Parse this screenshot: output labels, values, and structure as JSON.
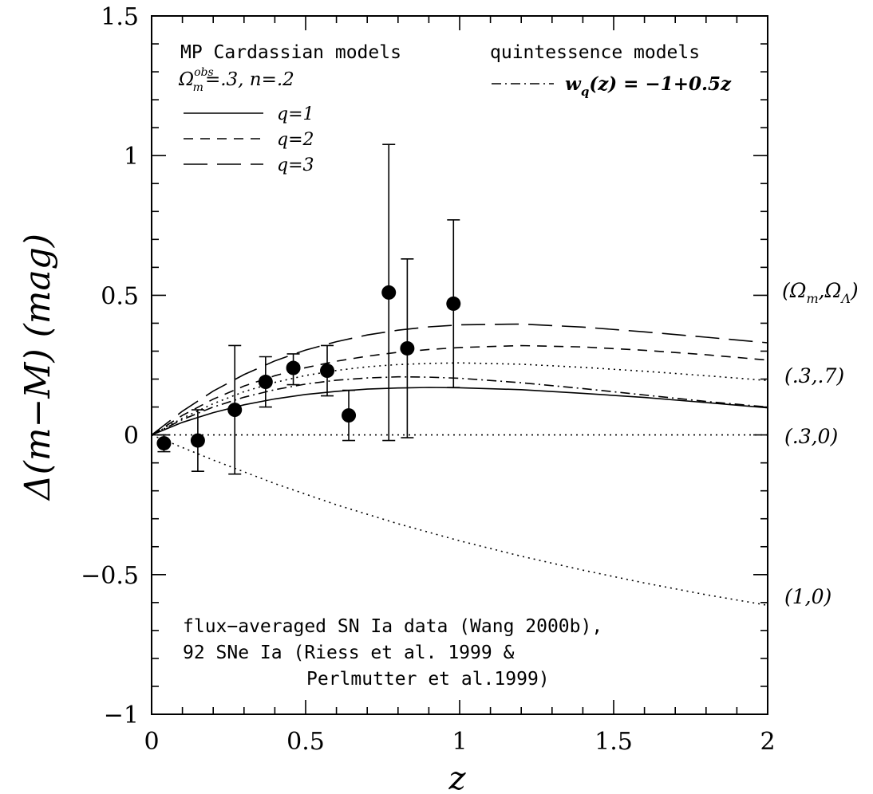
{
  "chart_data": {
    "type": "scatter",
    "xlabel": "z",
    "ylabel": "Δ(m−M)  (mag)",
    "xlim": [
      0,
      2
    ],
    "ylim": [
      -1,
      1.5
    ],
    "x_ticks": [
      "0",
      "0.5",
      "1",
      "1.5",
      "2"
    ],
    "y_ticks": [
      "−1",
      "−0.5",
      "0",
      "0.5",
      "1",
      "1.5"
    ],
    "grid": false,
    "legend_left": {
      "title": "MP Cardassian models",
      "params": "Ω",
      "params_sup": "obs",
      "params_sub": "m",
      "params_rest": "=.3, n=.2",
      "entries": [
        {
          "label": "q=1",
          "style": "solid"
        },
        {
          "label": "q=2",
          "style": "short-dash"
        },
        {
          "label": "q=3",
          "style": "long-dash"
        }
      ]
    },
    "legend_right": {
      "title": "quintessence models",
      "entry_w": "w",
      "entry_sub": "q",
      "entry_rest": "(z) = −1+0.5z",
      "style": "dash-dot"
    },
    "data_note": [
      "flux−averaged SN Ia data (Wang 2000b),",
      "92 SNe Ia (Riess et al. 1999 &",
      "Perlmutter et al.1999)"
    ],
    "right_labels": [
      {
        "text": "(Ω",
        "sub": "m",
        "mid": ",Ω",
        "sub2": "Λ",
        "end": ")",
        "y": 0.5
      },
      {
        "text": "(.3,.7)",
        "y": 0.2
      },
      {
        "text": "(.3,0)",
        "y": 0.0
      },
      {
        "text": "(1,0)",
        "y": -0.58
      }
    ],
    "data_points": [
      {
        "x": 0.04,
        "y": -0.03,
        "ylo": -0.06,
        "yhi": 0.0
      },
      {
        "x": 0.15,
        "y": -0.02,
        "ylo": -0.13,
        "yhi": 0.09
      },
      {
        "x": 0.27,
        "y": 0.09,
        "ylo": -0.14,
        "yhi": 0.32
      },
      {
        "x": 0.37,
        "y": 0.19,
        "ylo": 0.1,
        "yhi": 0.28
      },
      {
        "x": 0.46,
        "y": 0.24,
        "ylo": 0.18,
        "yhi": 0.29
      },
      {
        "x": 0.57,
        "y": 0.23,
        "ylo": 0.14,
        "yhi": 0.32
      },
      {
        "x": 0.64,
        "y": 0.07,
        "ylo": -0.02,
        "yhi": 0.16
      },
      {
        "x": 0.77,
        "y": 0.51,
        "ylo": -0.02,
        "yhi": 1.04
      },
      {
        "x": 0.83,
        "y": 0.31,
        "ylo": -0.01,
        "yhi": 0.63
      },
      {
        "x": 0.98,
        "y": 0.47,
        "ylo": 0.17,
        "yhi": 0.77
      }
    ],
    "series": [
      {
        "model": "cardassian q=1",
        "style": "solid",
        "x": [
          0,
          0.1,
          0.2,
          0.3,
          0.4,
          0.5,
          0.6,
          0.7,
          0.8,
          0.9,
          1.0,
          1.2,
          1.4,
          1.6,
          1.8,
          2.0
        ],
        "y": [
          0,
          0.045,
          0.08,
          0.108,
          0.129,
          0.145,
          0.156,
          0.164,
          0.168,
          0.17,
          0.169,
          0.162,
          0.149,
          0.134,
          0.116,
          0.097
        ]
      },
      {
        "model": "cardassian q=2",
        "style": "short-dash",
        "x": [
          0,
          0.1,
          0.2,
          0.3,
          0.4,
          0.5,
          0.6,
          0.7,
          0.8,
          0.9,
          1.0,
          1.2,
          1.4,
          1.6,
          1.8,
          2.0
        ],
        "y": [
          0,
          0.07,
          0.128,
          0.175,
          0.212,
          0.241,
          0.264,
          0.282,
          0.296,
          0.306,
          0.313,
          0.32,
          0.315,
          0.303,
          0.287,
          0.268
        ]
      },
      {
        "model": "cardassian q=3",
        "style": "long-dash",
        "x": [
          0,
          0.1,
          0.2,
          0.3,
          0.4,
          0.5,
          0.6,
          0.7,
          0.8,
          0.9,
          1.0,
          1.2,
          1.4,
          1.6,
          1.8,
          2.0
        ],
        "y": [
          0,
          0.085,
          0.157,
          0.216,
          0.265,
          0.304,
          0.334,
          0.358,
          0.375,
          0.387,
          0.394,
          0.397,
          0.386,
          0.369,
          0.35,
          0.33
        ]
      },
      {
        "model": "quintessence",
        "style": "dash-dot",
        "x": [
          0,
          0.1,
          0.2,
          0.3,
          0.4,
          0.5,
          0.6,
          0.7,
          0.8,
          0.9,
          1.0,
          1.2,
          1.4,
          1.6,
          1.8,
          2.0
        ],
        "y": [
          0,
          0.055,
          0.1,
          0.135,
          0.162,
          0.182,
          0.196,
          0.204,
          0.208,
          0.207,
          0.203,
          0.187,
          0.166,
          0.143,
          0.12,
          0.1
        ]
      },
      {
        "model": "lambda (.3,.7)",
        "style": "dotted",
        "x": [
          0,
          0.1,
          0.2,
          0.3,
          0.4,
          0.5,
          0.6,
          0.7,
          0.8,
          0.9,
          1.0,
          1.2,
          1.4,
          1.6,
          1.8,
          2.0
        ],
        "y": [
          0,
          0.06,
          0.112,
          0.155,
          0.188,
          0.213,
          0.231,
          0.244,
          0.252,
          0.256,
          0.258,
          0.253,
          0.242,
          0.228,
          0.212,
          0.195
        ]
      },
      {
        "model": "(.3,0)",
        "style": "dotted",
        "x": [
          0,
          2.0
        ],
        "y": [
          0,
          0
        ]
      },
      {
        "model": "(1,0)",
        "style": "dotted",
        "x": [
          0,
          0.2,
          0.4,
          0.6,
          0.8,
          1.0,
          1.2,
          1.4,
          1.6,
          1.8,
          2.0
        ],
        "y": [
          0,
          -0.09,
          -0.174,
          -0.25,
          -0.318,
          -0.379,
          -0.434,
          -0.484,
          -0.53,
          -0.572,
          -0.61
        ]
      }
    ]
  }
}
